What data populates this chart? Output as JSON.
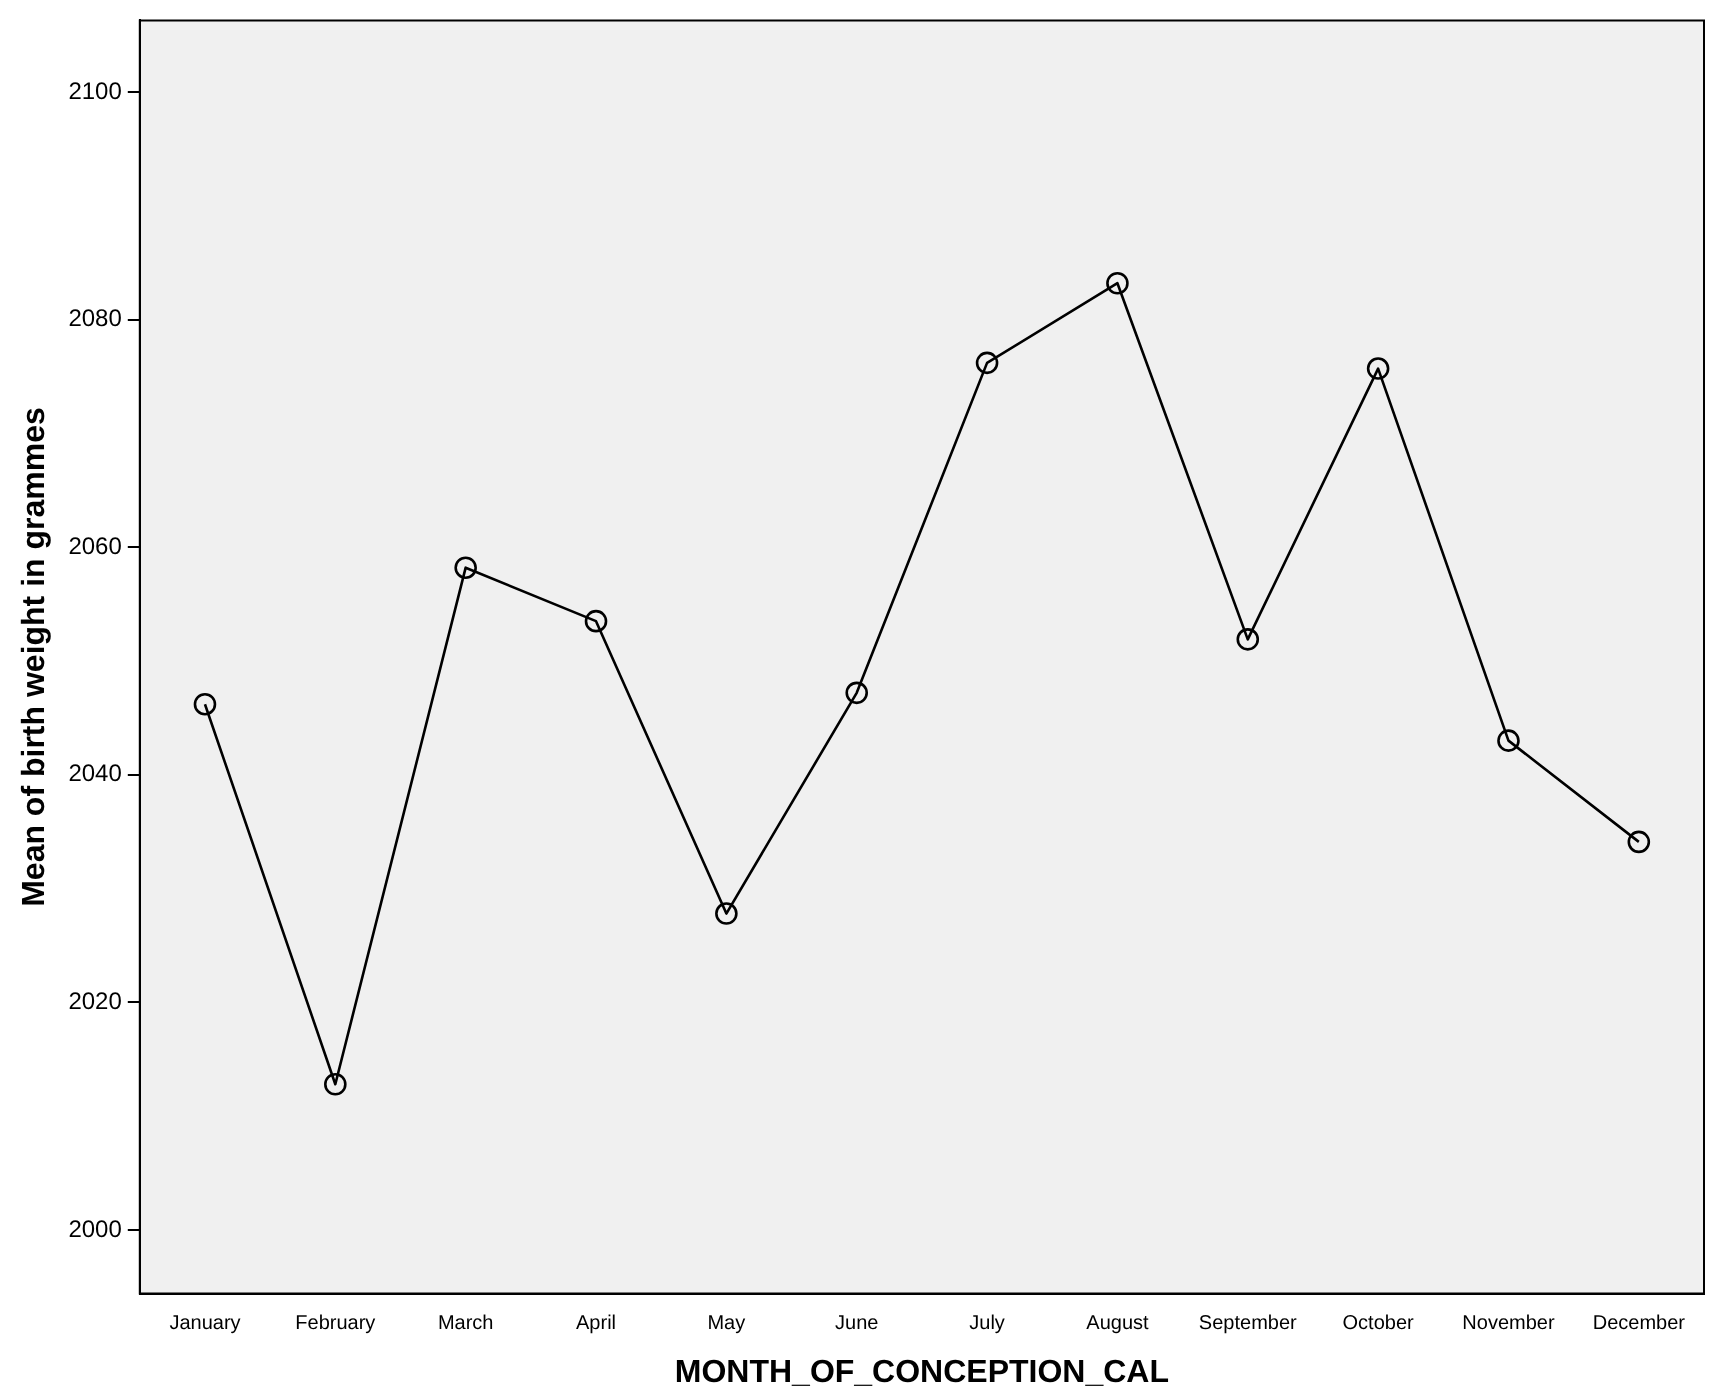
{
  "chart_data": {
    "type": "line",
    "xlabel": "MONTH_OF_CONCEPTION_CAL",
    "ylabel": "Mean of birth weight in grammes",
    "categories": [
      "January",
      "February",
      "March",
      "April",
      "May",
      "June",
      "July",
      "August",
      "September",
      "October",
      "November",
      "December"
    ],
    "series": [
      {
        "color": "#000000",
        "values": [
          2046.2,
          2012.8,
          2058.2,
          2053.5,
          2027.8,
          2047.2,
          2076.2,
          2083.2,
          2051.9,
          2075.7,
          2043.0,
          2034.1
        ]
      }
    ],
    "ylim": [
      1994.4,
      2106.3
    ],
    "yticks": [
      2000,
      2020,
      2040,
      2060,
      2080,
      2100
    ],
    "grid": false,
    "legend": false,
    "marker": "circle",
    "line_style": "solid"
  }
}
